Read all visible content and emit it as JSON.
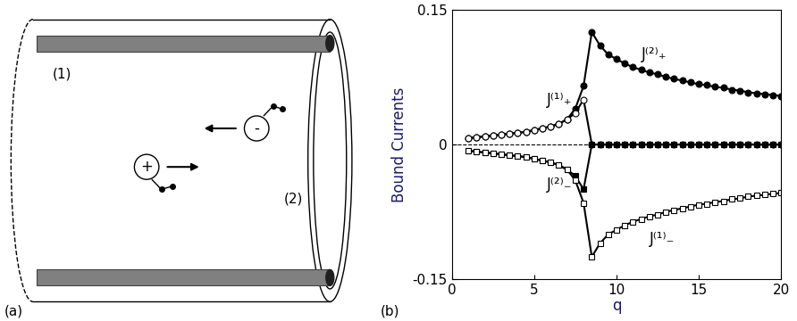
{
  "panel_labels": [
    "(a)",
    "(b)"
  ],
  "diagram": {
    "rods": [
      "(1)",
      "(2)"
    ],
    "charges": [
      "-",
      "+"
    ]
  },
  "chart_data": {
    "type": "line",
    "x_label": "q",
    "y_label": "Bound Currents",
    "xlim": [
      0,
      20
    ],
    "ylim": [
      -0.15,
      0.15
    ],
    "xticks": [
      0,
      5,
      10,
      15,
      20
    ],
    "yticks": [
      -0.15,
      0,
      0.15
    ],
    "reference_y": 0,
    "x": [
      1,
      1.5,
      2,
      2.5,
      3,
      3.5,
      4,
      4.5,
      5,
      5.5,
      6,
      6.5,
      7,
      7.5,
      8,
      8.5,
      9,
      9.5,
      10,
      10.5,
      11,
      11.5,
      12,
      12.5,
      13,
      13.5,
      14,
      14.5,
      15,
      15.5,
      16,
      16.5,
      17,
      17.5,
      18,
      18.5,
      19,
      19.5,
      20
    ],
    "series": [
      {
        "name": "J⁽²⁾₊",
        "color": "#000000",
        "marker": "filled_circle",
        "values": [
          0.007,
          0.008,
          0.009,
          0.01,
          0.011,
          0.012,
          0.013,
          0.014,
          0.016,
          0.018,
          0.02,
          0.023,
          0.028,
          0.04,
          0.065,
          0.125,
          0.11,
          0.1,
          0.095,
          0.09,
          0.086,
          0.083,
          0.08,
          0.078,
          0.075,
          0.073,
          0.071,
          0.069,
          0.067,
          0.066,
          0.064,
          0.063,
          0.061,
          0.06,
          0.058,
          0.057,
          0.056,
          0.055,
          0.054
        ]
      },
      {
        "name": "J⁽¹⁾₊",
        "color": "#000000",
        "marker": "open_circle",
        "values": [
          0.007,
          0.008,
          0.009,
          0.01,
          0.011,
          0.012,
          0.013,
          0.014,
          0.016,
          0.018,
          0.02,
          0.023,
          0.028,
          0.035,
          0.05,
          0,
          0,
          0,
          0,
          0,
          0,
          0,
          0,
          0,
          0,
          0,
          0,
          0,
          0,
          0,
          0,
          0,
          0,
          0,
          0,
          0,
          0,
          0,
          0
        ]
      },
      {
        "name": "J⁽²⁾₋",
        "color": "#000000",
        "marker": "filled_square",
        "values": [
          -0.007,
          -0.008,
          -0.009,
          -0.01,
          -0.011,
          -0.012,
          -0.013,
          -0.014,
          -0.016,
          -0.018,
          -0.02,
          -0.023,
          -0.028,
          -0.035,
          -0.05,
          0,
          0,
          0,
          0,
          0,
          0,
          0,
          0,
          0,
          0,
          0,
          0,
          0,
          0,
          0,
          0,
          0,
          0,
          0,
          0,
          0,
          0,
          0,
          0
        ]
      },
      {
        "name": "J⁽¹⁾₋",
        "color": "#000000",
        "marker": "open_square",
        "values": [
          -0.007,
          -0.008,
          -0.009,
          -0.01,
          -0.011,
          -0.012,
          -0.013,
          -0.014,
          -0.016,
          -0.018,
          -0.02,
          -0.023,
          -0.028,
          -0.04,
          -0.065,
          -0.125,
          -0.11,
          -0.1,
          -0.095,
          -0.09,
          -0.086,
          -0.083,
          -0.08,
          -0.078,
          -0.075,
          -0.073,
          -0.071,
          -0.069,
          -0.067,
          -0.066,
          -0.064,
          -0.063,
          -0.061,
          -0.06,
          -0.058,
          -0.057,
          -0.056,
          -0.055,
          -0.054
        ]
      }
    ]
  }
}
